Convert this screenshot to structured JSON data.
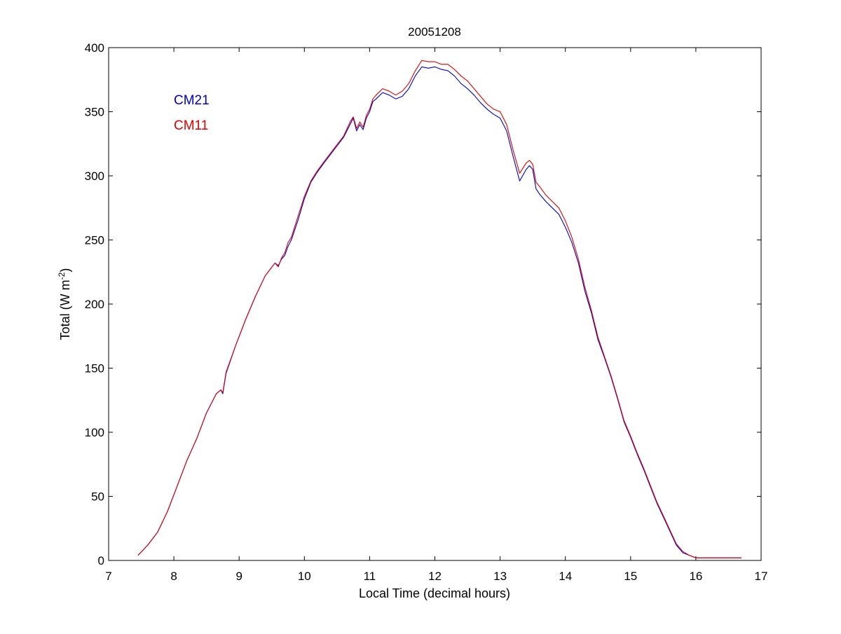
{
  "chart_data": {
    "type": "line",
    "title": "20051208",
    "xlabel": "Local Time (decimal hours)",
    "ylabel_main": "Total (W m",
    "ylabel_sup": "-2",
    "ylabel_close": ")",
    "xlim": [
      7,
      17
    ],
    "ylim": [
      0,
      400
    ],
    "xticks": [
      7,
      8,
      9,
      10,
      11,
      12,
      13,
      14,
      15,
      16,
      17
    ],
    "yticks": [
      0,
      50,
      100,
      150,
      200,
      250,
      300,
      350,
      400
    ],
    "grid": false,
    "legend_position": "top-left",
    "series": [
      {
        "name": "CM21",
        "color": "#0000cc",
        "x": [
          7.45,
          7.6,
          7.75,
          7.9,
          8.05,
          8.2,
          8.35,
          8.5,
          8.65,
          8.72,
          8.75,
          8.8,
          8.95,
          9.1,
          9.25,
          9.4,
          9.55,
          9.6,
          9.65,
          9.7,
          9.75,
          9.8,
          9.9,
          10.0,
          10.1,
          10.2,
          10.3,
          10.45,
          10.6,
          10.7,
          10.75,
          10.8,
          10.85,
          10.9,
          10.95,
          11.0,
          11.05,
          11.1,
          11.2,
          11.3,
          11.4,
          11.5,
          11.6,
          11.7,
          11.8,
          11.9,
          12.0,
          12.1,
          12.2,
          12.3,
          12.4,
          12.5,
          12.6,
          12.7,
          12.8,
          12.9,
          13.0,
          13.1,
          13.2,
          13.3,
          13.4,
          13.45,
          13.5,
          13.55,
          13.6,
          13.7,
          13.8,
          13.9,
          14.0,
          14.1,
          14.2,
          14.3,
          14.4,
          14.5,
          14.6,
          14.7,
          14.8,
          14.9,
          15.0,
          15.1,
          15.2,
          15.3,
          15.4,
          15.5,
          15.6,
          15.7,
          15.8,
          15.9,
          16.0,
          16.1,
          16.2,
          16.3,
          16.4,
          16.5,
          16.6,
          16.7
        ],
        "y": [
          4,
          12,
          22,
          38,
          58,
          78,
          95,
          115,
          130,
          133,
          130,
          146,
          168,
          188,
          206,
          222,
          232,
          230,
          235,
          238,
          245,
          250,
          265,
          282,
          295,
          303,
          310,
          320,
          330,
          340,
          345,
          335,
          340,
          336,
          345,
          350,
          358,
          360,
          365,
          363,
          360,
          362,
          368,
          378,
          385,
          384,
          385,
          383,
          382,
          378,
          372,
          368,
          363,
          357,
          352,
          348,
          345,
          335,
          315,
          296,
          305,
          308,
          305,
          290,
          286,
          280,
          275,
          270,
          260,
          248,
          232,
          210,
          193,
          172,
          158,
          143,
          126,
          108,
          96,
          83,
          71,
          58,
          45,
          34,
          23,
          12,
          6,
          4,
          2,
          2,
          2,
          2,
          2,
          2,
          2,
          2
        ],
        "y_note": ""
      },
      {
        "name": "CM11",
        "color": "#e00000",
        "x": [
          7.45,
          7.6,
          7.75,
          7.9,
          8.05,
          8.2,
          8.35,
          8.5,
          8.65,
          8.72,
          8.75,
          8.8,
          8.95,
          9.1,
          9.25,
          9.4,
          9.55,
          9.6,
          9.65,
          9.7,
          9.75,
          9.8,
          9.9,
          10.0,
          10.1,
          10.2,
          10.3,
          10.45,
          10.6,
          10.7,
          10.75,
          10.8,
          10.85,
          10.9,
          10.95,
          11.0,
          11.05,
          11.1,
          11.2,
          11.3,
          11.4,
          11.5,
          11.6,
          11.7,
          11.8,
          11.9,
          12.0,
          12.1,
          12.2,
          12.3,
          12.4,
          12.5,
          12.6,
          12.7,
          12.8,
          12.9,
          13.0,
          13.1,
          13.2,
          13.3,
          13.4,
          13.45,
          13.5,
          13.55,
          13.6,
          13.7,
          13.8,
          13.9,
          14.0,
          14.1,
          14.2,
          14.3,
          14.4,
          14.5,
          14.6,
          14.7,
          14.8,
          14.9,
          15.0,
          15.1,
          15.2,
          15.3,
          15.4,
          15.5,
          15.6,
          15.7,
          15.8,
          15.9,
          16.0,
          16.1,
          16.2,
          16.3,
          16.4,
          16.5,
          16.6,
          16.7
        ],
        "y": [
          4,
          12,
          22,
          38,
          58,
          78,
          95,
          115,
          130,
          133,
          131,
          147,
          168,
          188,
          206,
          222,
          232,
          229,
          236,
          240,
          248,
          252,
          268,
          284,
          296,
          304,
          311,
          321,
          331,
          342,
          346,
          337,
          342,
          338,
          347,
          352,
          360,
          363,
          368,
          366,
          363,
          366,
          372,
          382,
          390,
          389,
          389,
          387,
          387,
          383,
          378,
          374,
          368,
          362,
          356,
          352,
          350,
          340,
          320,
          302,
          310,
          312,
          309,
          295,
          292,
          285,
          280,
          275,
          265,
          252,
          235,
          213,
          195,
          174,
          159,
          144,
          127,
          109,
          97,
          84,
          72,
          59,
          46,
          35,
          24,
          13,
          7,
          4,
          2,
          2,
          2,
          2,
          2,
          2,
          2,
          2
        ]
      }
    ]
  }
}
